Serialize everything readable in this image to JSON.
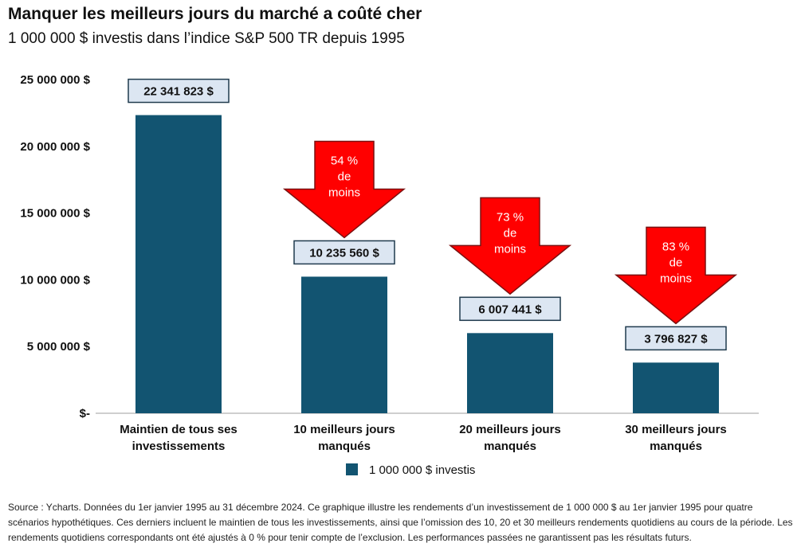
{
  "title": "Manquer les meilleurs jours du marché a coûté cher",
  "subtitle": "1 000 000 $ investis dans l’indice S&P 500 TR depuis 1995",
  "colors": {
    "bar": "#125471",
    "arrow": "#ff0000",
    "arrow_stroke": "#7a1010",
    "label_fill": "#dce6f2",
    "label_stroke": "#1f3a4d"
  },
  "chart_data": {
    "type": "bar",
    "categories": [
      [
        "Maintien de tous ses",
        "investissements"
      ],
      [
        "10 meilleurs jours",
        "manqués"
      ],
      [
        "20 meilleurs jours",
        "manqués"
      ],
      [
        "30 meilleurs jours",
        "manqués"
      ]
    ],
    "series": [
      {
        "name": "1 000 000 $ investis",
        "values": [
          22341823,
          10235560,
          6007441,
          3796827
        ]
      }
    ],
    "data_labels": [
      "22 341 823 $",
      "10 235 560 $",
      "6 007 441 $",
      "3 796 827 $"
    ],
    "ylim": [
      0,
      25000000
    ],
    "yticks": [
      0,
      5000000,
      10000000,
      15000000,
      20000000,
      25000000
    ],
    "ytick_labels": [
      "$-",
      "5 000 000 $",
      "10 000 000 $",
      "15 000 000 $",
      "20 000 000 $",
      "25 000 000 $"
    ],
    "annotations": [
      {
        "category_index": 1,
        "lines": [
          "54 %",
          "de",
          "moins"
        ]
      },
      {
        "category_index": 2,
        "lines": [
          "73 %",
          "de",
          "moins"
        ]
      },
      {
        "category_index": 3,
        "lines": [
          "83 %",
          "de",
          "moins"
        ]
      }
    ],
    "grid": false,
    "legend": "bottom"
  },
  "footnote": "Source : Ycharts. Données du 1er janvier 1995 au 31 décembre 2024. Ce graphique illustre les rendements d’un investissement de 1 000 000 $ au 1er janvier 1995 pour quatre scénarios hypothétiques. Ces derniers incluent le maintien de tous les investissements, ainsi que l’omission des 10, 20 et 30 meilleurs rendements quotidiens au cours de la période. Les rendements quotidiens correspondants ont été ajustés à 0 % pour tenir compte de l’exclusion. Les performances passées ne garantissent pas les résultats futurs."
}
